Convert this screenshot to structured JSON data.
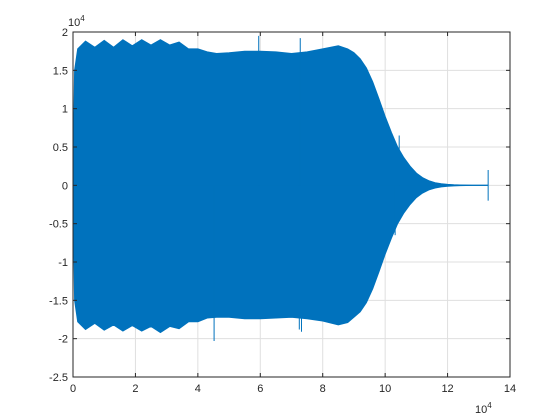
{
  "chart_data": {
    "type": "area",
    "title": "",
    "xlabel": "",
    "ylabel": "",
    "xlim": [
      0,
      140000
    ],
    "ylim": [
      -25000,
      20000
    ],
    "grid": true,
    "x_exponent_label": "10",
    "x_exponent_power": "4",
    "y_exponent_label": "10",
    "y_exponent_power": "4",
    "x_ticks": [
      0,
      20000,
      40000,
      60000,
      80000,
      100000,
      120000,
      140000
    ],
    "x_tick_labels": [
      "0",
      "2",
      "4",
      "6",
      "8",
      "10",
      "12",
      "14"
    ],
    "y_ticks": [
      -25000,
      -20000,
      -15000,
      -10000,
      -5000,
      0,
      5000,
      10000,
      15000,
      20000
    ],
    "y_tick_labels": [
      "-2.5",
      "-2",
      "-1.5",
      "-1",
      "-0.5",
      "0",
      "0.5",
      "1",
      "1.5",
      "2"
    ],
    "series": [
      {
        "color": "#0072bd",
        "x": [
          0,
          500,
          1500,
          4000,
          7000,
          10000,
          13000,
          16000,
          19000,
          22000,
          25000,
          28000,
          31000,
          34000,
          37000,
          40000,
          43000,
          46000,
          50000,
          55000,
          60000,
          65000,
          70000,
          75000,
          80000,
          85000,
          88000,
          90000,
          92000,
          94000,
          96000,
          98000,
          100000,
          102000,
          104000,
          106000,
          108000,
          110000,
          112000,
          114000,
          116000,
          118000,
          120000,
          122000,
          124000,
          126000,
          128000,
          130000,
          132000,
          133000
        ],
        "upper": [
          0,
          15000,
          17800,
          18800,
          18000,
          18900,
          18000,
          19000,
          18200,
          19000,
          18300,
          19000,
          18300,
          18700,
          17800,
          17800,
          17400,
          17200,
          17300,
          17500,
          17500,
          17400,
          17200,
          17400,
          17800,
          18200,
          17800,
          17300,
          16500,
          15300,
          13500,
          11300,
          9000,
          6900,
          5000,
          3600,
          2500,
          1600,
          1000,
          600,
          350,
          200,
          120,
          70,
          40,
          25,
          15,
          10,
          5,
          0
        ],
        "lower": [
          0,
          -15000,
          -17800,
          -18800,
          -18000,
          -18900,
          -18200,
          -19000,
          -18300,
          -19000,
          -18400,
          -19200,
          -18400,
          -18700,
          -17800,
          -17800,
          -17300,
          -17200,
          -17200,
          -17400,
          -17400,
          -17300,
          -17200,
          -17400,
          -17700,
          -18200,
          -17900,
          -17200,
          -16500,
          -15300,
          -13500,
          -11300,
          -9000,
          -6900,
          -5000,
          -3600,
          -2500,
          -1600,
          -1000,
          -600,
          -350,
          -200,
          -120,
          -70,
          -40,
          -25,
          -15,
          -10,
          -5,
          0
        ]
      }
    ],
    "spikes": [
      {
        "x": 0,
        "y0": 0,
        "y1": 5500
      },
      {
        "x": 59500,
        "y0": 0,
        "y1": 19500
      },
      {
        "x": 72800,
        "y0": 0,
        "y1": 19200
      },
      {
        "x": 45200,
        "y0": 0,
        "y1": -20300
      },
      {
        "x": 73200,
        "y0": 0,
        "y1": -19100
      },
      {
        "x": 72500,
        "y0": 0,
        "y1": -18800
      },
      {
        "x": 104500,
        "y0": 0,
        "y1": 6500
      },
      {
        "x": 103200,
        "y0": 0,
        "y1": -6500
      },
      {
        "x": 133000,
        "y0": -2000,
        "y1": 2000
      }
    ]
  }
}
